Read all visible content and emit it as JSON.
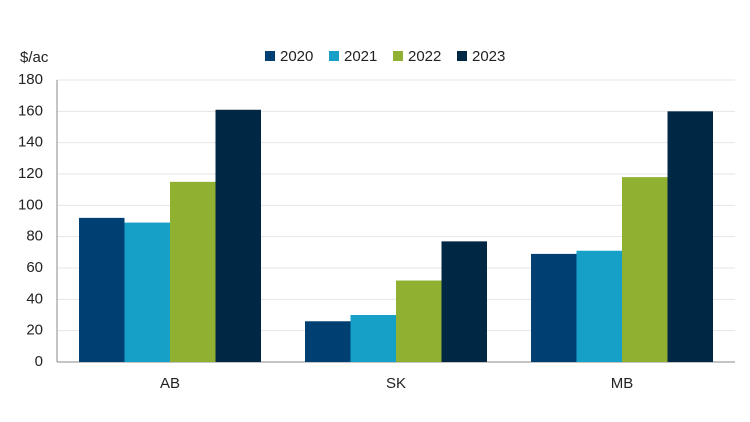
{
  "chart_data": {
    "type": "bar",
    "y_label": "$/ac",
    "categories": [
      "AB",
      "SK",
      "MB"
    ],
    "series": [
      {
        "name": "2020",
        "color": "#003f72",
        "values": [
          92,
          26,
          69
        ]
      },
      {
        "name": "2021",
        "color": "#16a0c8",
        "values": [
          89,
          30,
          71
        ]
      },
      {
        "name": "2022",
        "color": "#8fb031",
        "values": [
          115,
          52,
          118
        ]
      },
      {
        "name": "2023",
        "color": "#002744",
        "values": [
          161,
          77,
          160
        ]
      }
    ],
    "ylim": [
      0,
      180
    ],
    "yticks": [
      0,
      20,
      40,
      60,
      80,
      100,
      120,
      140,
      160,
      180
    ],
    "grid": true,
    "legend": "top"
  }
}
